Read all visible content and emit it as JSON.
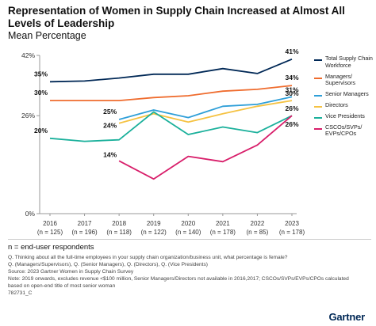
{
  "title": "Representation of Women in Supply Chain Increased at Almost All Levels of Leadership",
  "subtitle": "Mean Percentage",
  "chart_data": {
    "type": "line",
    "categories": [
      "2016\n(n = 125)",
      "2017\n(n = 196)",
      "2018\n(n = 118)",
      "2019\n(n = 122)",
      "2020\n(n = 140)",
      "2021\n(n = 178)",
      "2022\n(n = 85)",
      "2023\n(n = 178)"
    ],
    "x_years": [
      "2016",
      "2017",
      "2018",
      "2019",
      "2020",
      "2021",
      "2022",
      "2023"
    ],
    "x_n": [
      "(n = 125)",
      "(n = 196)",
      "(n = 118)",
      "(n = 122)",
      "(n = 140)",
      "(n = 178)",
      "(n = 85)",
      "(n = 178)"
    ],
    "y_ticks": [
      "42%",
      "26%",
      "0%"
    ],
    "y_tick_values": [
      42,
      26,
      0
    ],
    "legend_position": "right",
    "grid": false,
    "series": [
      {
        "name": "Total Supply Chain Workforce",
        "color": "#002856",
        "values": [
          35,
          35.2,
          36,
          37,
          37,
          38.5,
          37.2,
          41
        ],
        "labels": {
          "0": "35%",
          "7": "41%"
        }
      },
      {
        "name": "Managers/ Supervisors",
        "color": "#ef6c2e",
        "values": [
          30,
          30,
          30,
          30.8,
          31.3,
          32.5,
          33,
          34
        ],
        "labels": {
          "0": "30%",
          "7": "34%"
        }
      },
      {
        "name": "Senior Managers",
        "color": "#2f9fd8",
        "values": [
          null,
          null,
          25,
          27.5,
          25.5,
          28.5,
          29,
          31
        ],
        "labels": {
          "2": "25%",
          "7": "31%"
        }
      },
      {
        "name": "Directors",
        "color": "#f5c242",
        "values": [
          null,
          null,
          24,
          26.5,
          24.3,
          26.5,
          28.5,
          30
        ],
        "labels": {
          "2": "24%",
          "7": "30%"
        }
      },
      {
        "name": "Vice Presidents",
        "color": "#1ab09b",
        "values": [
          20,
          19.2,
          19.6,
          27,
          21,
          23,
          21.5,
          26
        ],
        "labels": {
          "0": "20%",
          "7": "26%"
        }
      },
      {
        "name": "CSCOs/SVPs/ EVPs/CPOs",
        "color": "#d81e6a",
        "values": [
          null,
          null,
          14,
          9.2,
          15.2,
          13.8,
          18.2,
          26
        ],
        "labels": {
          "2": "14%",
          "7": "26%"
        }
      }
    ]
  },
  "footnotes": {
    "main": "n = end-user respondents",
    "lines": [
      "Q. Thinking about all the full-time employees in your supply chain organization/business unit, what percentage is female?",
      "Q. (Managers/Supervisors), Q. (Senior Managers), Q. (Directors), Q. (Vice Presidents)",
      "Source: 2023 Gartner Women in Supply Chain Survey",
      "Note: 2019 onwards, excludes revenue <$100 million, Senior Managers/Directors not available in 2016,2017; CSCOs/SVPs/EVPs/CPOs calculated",
      "based on open-end title of most senior woman",
      "782731_C"
    ]
  },
  "brand": "Gartner"
}
